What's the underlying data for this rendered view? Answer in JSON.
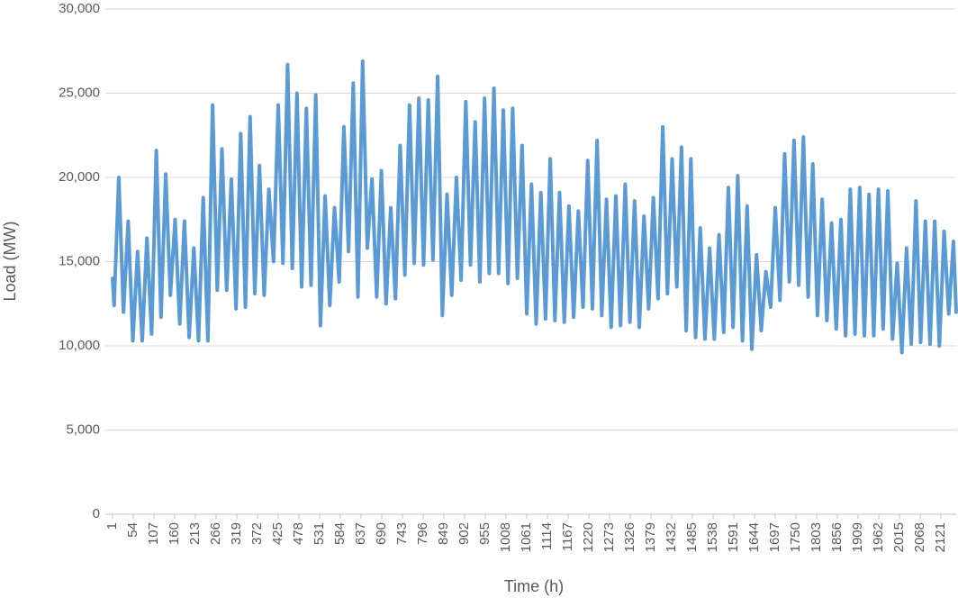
{
  "chart_data": {
    "type": "line",
    "y_label": "Load (MW)",
    "x_label": "Time (h)",
    "color": "#5b9bd5",
    "grid": true,
    "xlim": [
      1,
      2160
    ],
    "xticks": [
      1,
      54,
      107,
      160,
      213,
      266,
      319,
      372,
      425,
      478,
      531,
      584,
      637,
      690,
      743,
      796,
      849,
      902,
      955,
      1008,
      1061,
      1114,
      1167,
      1220,
      1273,
      1326,
      1379,
      1432,
      1485,
      1538,
      1591,
      1644,
      1697,
      1750,
      1803,
      1856,
      1909,
      1962,
      2015,
      2068,
      2121
    ],
    "ylim": [
      0,
      30000
    ],
    "yticks": [
      0,
      {
        "value": 5000,
        "label": "5,000"
      },
      {
        "value": 10000,
        "label": "10,000"
      },
      {
        "value": 15000,
        "label": "15,000"
      },
      {
        "value": 20000,
        "label": "20,000"
      },
      {
        "value": 25000,
        "label": "25,000"
      },
      {
        "value": 30000,
        "label": "30,000"
      }
    ],
    "x": [
      1,
      5,
      17,
      29,
      41,
      53,
      65,
      77,
      89,
      101,
      113,
      125,
      137,
      149,
      161,
      173,
      185,
      197,
      209,
      221,
      233,
      245,
      257,
      269,
      281,
      293,
      305,
      317,
      329,
      341,
      353,
      365,
      377,
      389,
      401,
      413,
      425,
      437,
      449,
      461,
      473,
      485,
      497,
      509,
      521,
      533,
      545,
      557,
      569,
      581,
      593,
      605,
      617,
      629,
      641,
      653,
      665,
      677,
      689,
      701,
      713,
      725,
      737,
      749,
      761,
      773,
      785,
      797,
      809,
      821,
      833,
      845,
      857,
      869,
      881,
      893,
      905,
      917,
      929,
      941,
      953,
      965,
      977,
      989,
      1001,
      1013,
      1025,
      1037,
      1049,
      1061,
      1073,
      1085,
      1097,
      1109,
      1121,
      1133,
      1145,
      1157,
      1169,
      1181,
      1193,
      1205,
      1217,
      1229,
      1241,
      1253,
      1265,
      1277,
      1289,
      1301,
      1313,
      1325,
      1337,
      1349,
      1361,
      1373,
      1385,
      1397,
      1409,
      1421,
      1433,
      1445,
      1457,
      1469,
      1481,
      1493,
      1505,
      1517,
      1529,
      1541,
      1553,
      1565,
      1577,
      1589,
      1601,
      1613,
      1625,
      1637,
      1649,
      1661,
      1673,
      1685,
      1697,
      1709,
      1721,
      1733,
      1745,
      1757,
      1769,
      1781,
      1793,
      1805,
      1817,
      1829,
      1841,
      1853,
      1865,
      1877,
      1889,
      1901,
      1913,
      1925,
      1937,
      1949,
      1961,
      1973,
      1985,
      1997,
      2009,
      2021,
      2033,
      2045,
      2057,
      2069,
      2081,
      2093,
      2105,
      2117,
      2129,
      2141,
      2153,
      2160
    ],
    "values": [
      14000,
      12400,
      20000,
      12000,
      17400,
      10300,
      15600,
      10300,
      16400,
      10700,
      21600,
      11700,
      20200,
      13000,
      17500,
      11300,
      17400,
      10500,
      15800,
      10300,
      18800,
      10300,
      24300,
      13300,
      21700,
      13300,
      19900,
      12200,
      22600,
      12300,
      23600,
      13100,
      20700,
      13000,
      19300,
      15000,
      24300,
      14900,
      26700,
      14600,
      25000,
      13500,
      24100,
      13600,
      24900,
      11200,
      18900,
      12400,
      18200,
      13800,
      23000,
      15600,
      25600,
      12900,
      26900,
      15800,
      19900,
      12900,
      20400,
      12500,
      18200,
      12800,
      21900,
      14200,
      24300,
      14900,
      24700,
      14800,
      24600,
      15100,
      26000,
      11800,
      19000,
      13000,
      20000,
      13900,
      24500,
      14800,
      23300,
      13800,
      24700,
      14300,
      25300,
      14300,
      24000,
      13700,
      24100,
      14000,
      21900,
      11900,
      19600,
      11300,
      19100,
      11600,
      21100,
      11500,
      19100,
      11400,
      18300,
      11700,
      18000,
      12300,
      21000,
      12200,
      22200,
      11800,
      18700,
      11100,
      18900,
      11200,
      19600,
      11400,
      18600,
      11100,
      17700,
      12200,
      18800,
      12800,
      23000,
      13100,
      21100,
      13500,
      21800,
      10900,
      21100,
      10500,
      17000,
      10400,
      15800,
      10400,
      16600,
      10800,
      19400,
      11100,
      20100,
      10300,
      18300,
      9800,
      15400,
      10900,
      14400,
      12300,
      18200,
      12700,
      21400,
      13800,
      22200,
      13600,
      22400,
      12900,
      20800,
      11800,
      18700,
      11500,
      17300,
      11000,
      17500,
      10600,
      19300,
      10700,
      19400,
      10600,
      19000,
      10600,
      19300,
      11000,
      19200,
      10400,
      14900,
      9600,
      15800,
      10100,
      18600,
      10200,
      17400,
      10100,
      17400,
      10000,
      16800,
      11900,
      16200,
      12000
    ]
  }
}
